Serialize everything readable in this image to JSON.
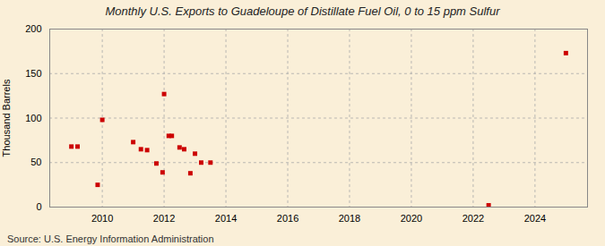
{
  "chart_data": {
    "type": "scatter",
    "title": "Monthly U.S. Exports to Guadeloupe of Distillate Fuel Oil, 0 to 15 ppm Sulfur",
    "ylabel": "Thousand Barrels",
    "annotation": "Source: U.S. Energy Information Administration",
    "x": [
      2009.0,
      2009.2,
      2009.85,
      2010.0,
      2011.0,
      2011.25,
      2011.45,
      2011.75,
      2011.95,
      2012.0,
      2012.15,
      2012.25,
      2012.5,
      2012.65,
      2012.85,
      2013.0,
      2013.2,
      2013.5,
      2022.5,
      2025.0
    ],
    "values": [
      68,
      68,
      25,
      98,
      73,
      65,
      64,
      49,
      39,
      127,
      80,
      80,
      67,
      65,
      38,
      60,
      50,
      50,
      2,
      173
    ],
    "color": "#cc0000",
    "marker": "square",
    "xlim": [
      2008.3,
      2025.7
    ],
    "ylim": [
      0,
      200
    ],
    "xticks": [
      2010,
      2012,
      2014,
      2016,
      2018,
      2020,
      2022,
      2024
    ],
    "yticks": [
      0,
      50,
      100,
      150,
      200
    ],
    "grid": true
  }
}
